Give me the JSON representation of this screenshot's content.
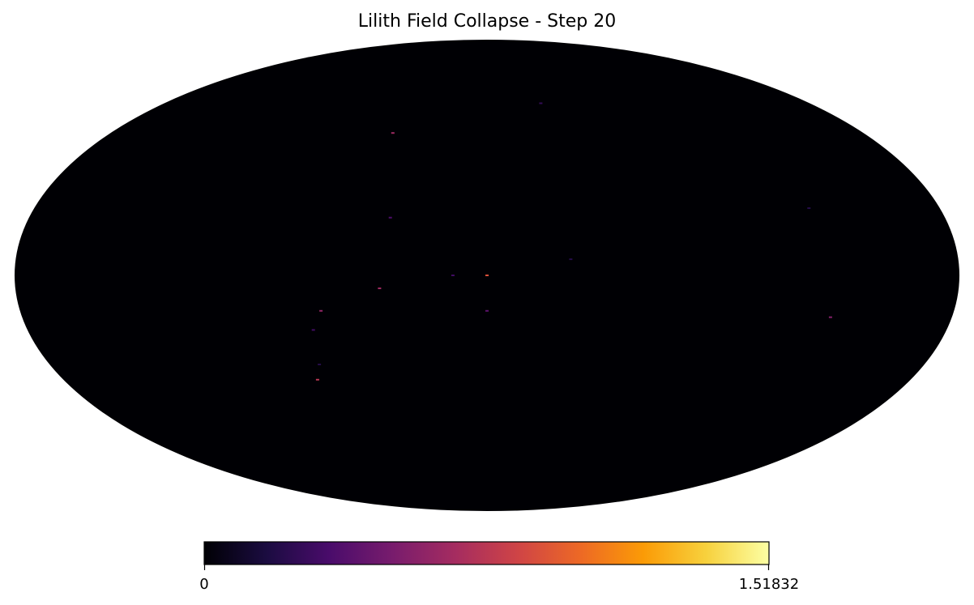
{
  "chart_data": {
    "type": "heatmap",
    "projection": "mollweide",
    "title": "Lilith Field Collapse - Step 20",
    "colormap": "inferno",
    "colormap_stops": [
      "#000004",
      "#1b0c41",
      "#4a0c6b",
      "#781c6d",
      "#a52c60",
      "#cf4446",
      "#ed6925",
      "#fb9b06",
      "#f7d13d",
      "#fcffa4"
    ],
    "background_value": 0,
    "colorbar": {
      "min": 0,
      "max": 1.51832,
      "min_label": "0",
      "max_label": "1.51832"
    },
    "hotspots": [
      {
        "lon": 0,
        "lat": 0,
        "value": 0.9
      },
      {
        "lon": 13,
        "lat": 0,
        "value": 0.3
      },
      {
        "lon": 41,
        "lat": -4,
        "value": 0.65
      },
      {
        "lon": 64,
        "lat": -11,
        "value": 0.6
      },
      {
        "lon": 68,
        "lat": -17,
        "value": 0.3
      },
      {
        "lon": 69,
        "lat": -28,
        "value": 0.2
      },
      {
        "lon": 72,
        "lat": -33,
        "value": 0.75
      },
      {
        "lon": 0,
        "lat": -11,
        "value": 0.4
      },
      {
        "lon": 45,
        "lat": 46,
        "value": 0.65
      },
      {
        "lon": 38,
        "lat": 18,
        "value": 0.35
      },
      {
        "lon": -30,
        "lat": 57,
        "value": 0.25
      },
      {
        "lon": -128,
        "lat": 21,
        "value": 0.2
      },
      {
        "lon": -133,
        "lat": -13,
        "value": 0.55
      },
      {
        "lon": -32,
        "lat": 5,
        "value": 0.2
      }
    ]
  }
}
